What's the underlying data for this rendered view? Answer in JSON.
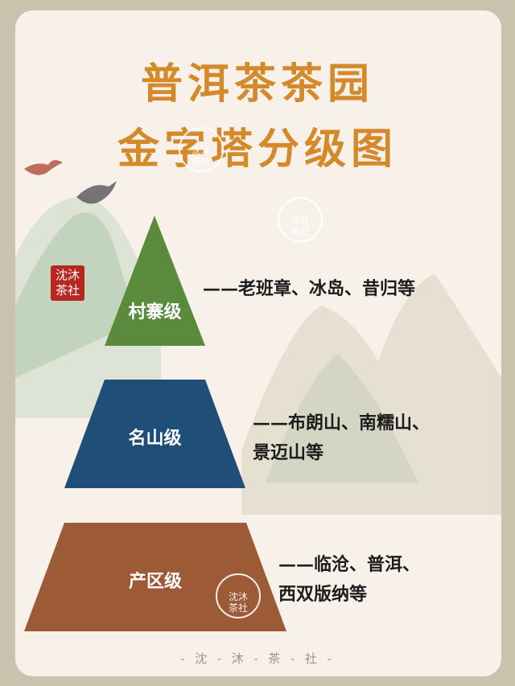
{
  "title": {
    "line1": "普洱茶茶园",
    "line2": "金字塔分级图"
  },
  "seal": {
    "line1": "沈沐",
    "line2": "茶社"
  },
  "watermark": {
    "line1": "沈沐",
    "line2": "茶社"
  },
  "tiers": [
    {
      "label": "村寨级",
      "color": "#5a8a3c",
      "desc_lines": [
        "——老班章、冰岛、昔归等"
      ]
    },
    {
      "label": "名山级",
      "color": "#1f4e78",
      "desc_lines": [
        "——布朗山、南糯山、",
        "景迈山等"
      ]
    },
    {
      "label": "产区级",
      "color": "#9c5a36",
      "desc_lines": [
        "——临沧、普洱、",
        "西双版纳等"
      ]
    }
  ],
  "footer": "- 沈 - 沐 - 茶 - 社 -",
  "colors": {
    "background": "#c9c2ad",
    "card": "#f7f1ea",
    "title": "#d4892a",
    "seal": "#b8271f"
  }
}
